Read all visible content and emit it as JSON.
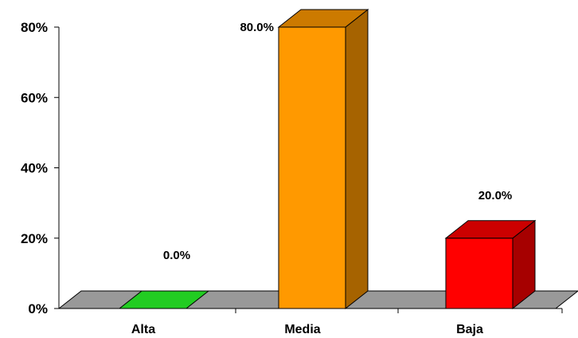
{
  "chart_data": {
    "type": "bar",
    "categories": [
      "Alta",
      "Media",
      "Baja"
    ],
    "values": [
      0.0,
      80.0,
      20.0
    ],
    "data_labels": [
      "0.0%",
      "80.0%",
      "20.0%"
    ],
    "colors": [
      "#22CC22",
      "#FF9900",
      "#FF0000"
    ],
    "ylim": [
      0,
      80
    ],
    "yticks": [
      0,
      20,
      40,
      60,
      80
    ],
    "ytick_labels": [
      "0%",
      "20%",
      "40%",
      "60%",
      "80%"
    ],
    "floor_color": "#999999",
    "grid": false,
    "style": "3d-column"
  }
}
